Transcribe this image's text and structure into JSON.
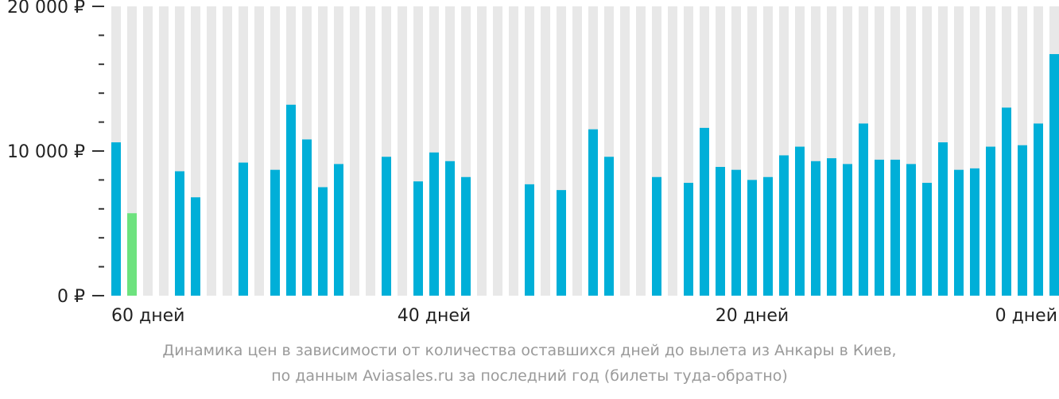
{
  "chart_data": {
    "type": "bar",
    "y_ticks": [
      "20 000 ₽",
      "10 000 ₽",
      "0 ₽"
    ],
    "x_ticks": [
      "60 дней",
      "40 дней",
      "20 дней",
      "0 дней"
    ],
    "ylim": [
      0,
      20000
    ],
    "y_minor_tick_step": 2000,
    "colors": {
      "bar": "#00afd8",
      "highlight": "#6de27e",
      "background_column": "#e8e8e8",
      "axis": "#333333"
    },
    "highlight_day": 59,
    "days": [
      60,
      59,
      58,
      57,
      56,
      55,
      54,
      53,
      52,
      51,
      50,
      49,
      48,
      47,
      46,
      45,
      44,
      43,
      42,
      41,
      40,
      39,
      38,
      37,
      36,
      35,
      34,
      33,
      32,
      31,
      30,
      29,
      28,
      27,
      26,
      25,
      24,
      23,
      22,
      21,
      20,
      19,
      18,
      17,
      16,
      15,
      14,
      13,
      12,
      11,
      10,
      9,
      8,
      7,
      6,
      5,
      4,
      3,
      2,
      1,
      0
    ],
    "values": [
      10600,
      5700,
      null,
      null,
      8600,
      6800,
      null,
      null,
      9200,
      null,
      8700,
      13200,
      10800,
      7500,
      9100,
      null,
      null,
      9600,
      null,
      7900,
      9900,
      9300,
      8200,
      null,
      null,
      null,
      7700,
      null,
      7300,
      null,
      11500,
      9600,
      null,
      null,
      8200,
      null,
      7800,
      11600,
      8900,
      8700,
      8000,
      8200,
      9700,
      10300,
      9300,
      9500,
      9100,
      11900,
      9400,
      9400,
      9100,
      7800,
      10600,
      8700,
      8800,
      10300,
      13000,
      10400,
      11900,
      16700,
      null
    ]
  },
  "caption": {
    "line1": "Динамика цен в зависимости от количества оставшихся дней до вылета из Анкары в Киев,",
    "line2": "по данным Aviasales.ru за последний год (билеты туда-обратно)"
  }
}
